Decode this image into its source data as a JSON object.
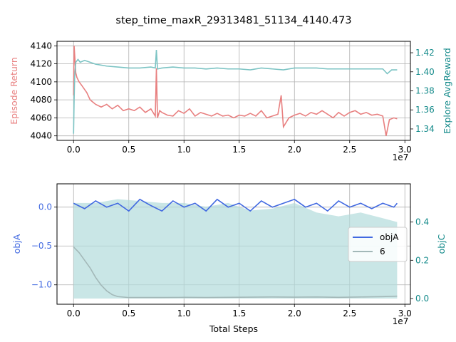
{
  "figure_title": "step_time_maxR_29313481_51134_4140.473",
  "colors": {
    "episode_return": "#e88080",
    "explore_reward": "#7cc4c4",
    "objA": "#4169e1",
    "objC_line": "#a3b8b8",
    "objC_fill": "#b2dcdc",
    "left_label_top": "#e88080",
    "right_label_top": "#138a8a",
    "left_label_bottom": "#4169e1",
    "right_label_bottom": "#138a8a"
  },
  "chart_data": [
    {
      "type": "line",
      "title": "",
      "xlabel": "",
      "x_offset_label": "1e7",
      "ylabel_left": "Episode Return",
      "ylabel_right": "Explore AvgReward",
      "xlim": [
        -0.15,
        3.05
      ],
      "ylim_left": [
        4035,
        4145
      ],
      "ylim_right": [
        1.328,
        1.432
      ],
      "x_ticks": [
        0.0,
        0.5,
        1.0,
        1.5,
        2.0,
        2.5,
        3.0
      ],
      "x_tick_labels": [
        "0.0",
        "0.5",
        "1.0",
        "1.5",
        "2.0",
        "2.5",
        "3.0"
      ],
      "y_ticks_left": [
        4040,
        4060,
        4080,
        4100,
        4120,
        4140
      ],
      "y_tick_labels_left": [
        "4040",
        "4060",
        "4080",
        "4100",
        "4120",
        "4140"
      ],
      "y_ticks_right": [
        1.34,
        1.36,
        1.38,
        1.4,
        1.42
      ],
      "y_tick_labels_right": [
        "1.34",
        "1.36",
        "1.38",
        "1.40",
        "1.42"
      ],
      "grid": true,
      "series": [
        {
          "name": "Episode Return",
          "axis": "left",
          "x": [
            0.0,
            0.005,
            0.01,
            0.02,
            0.03,
            0.05,
            0.08,
            0.12,
            0.15,
            0.2,
            0.25,
            0.3,
            0.35,
            0.4,
            0.45,
            0.5,
            0.55,
            0.6,
            0.65,
            0.7,
            0.74,
            0.75,
            0.76,
            0.78,
            0.8,
            0.85,
            0.9,
            0.95,
            1.0,
            1.05,
            1.1,
            1.15,
            1.2,
            1.25,
            1.3,
            1.35,
            1.4,
            1.45,
            1.5,
            1.55,
            1.6,
            1.65,
            1.7,
            1.75,
            1.8,
            1.85,
            1.88,
            1.9,
            1.95,
            2.0,
            2.05,
            2.1,
            2.15,
            2.2,
            2.25,
            2.3,
            2.35,
            2.4,
            2.45,
            2.5,
            2.55,
            2.6,
            2.65,
            2.7,
            2.75,
            2.8,
            2.83,
            2.86,
            2.9,
            2.93
          ],
          "y": [
            4085,
            4140,
            4130,
            4110,
            4105,
            4100,
            4095,
            4088,
            4080,
            4075,
            4072,
            4075,
            4070,
            4074,
            4068,
            4070,
            4068,
            4072,
            4066,
            4070,
            4062,
            4115,
            4060,
            4068,
            4066,
            4063,
            4062,
            4068,
            4065,
            4070,
            4062,
            4066,
            4064,
            4062,
            4065,
            4062,
            4063,
            4060,
            4063,
            4062,
            4065,
            4062,
            4068,
            4060,
            4062,
            4064,
            4085,
            4050,
            4060,
            4063,
            4065,
            4062,
            4066,
            4064,
            4068,
            4064,
            4060,
            4066,
            4062,
            4066,
            4068,
            4064,
            4066,
            4063,
            4064,
            4062,
            4040,
            4058,
            4060,
            4059
          ]
        },
        {
          "name": "Explore AvgReward",
          "axis": "right",
          "x": [
            0.0,
            0.005,
            0.01,
            0.02,
            0.04,
            0.06,
            0.1,
            0.15,
            0.2,
            0.3,
            0.4,
            0.5,
            0.6,
            0.7,
            0.74,
            0.75,
            0.76,
            0.8,
            0.9,
            1.0,
            1.1,
            1.2,
            1.3,
            1.4,
            1.5,
            1.6,
            1.7,
            1.8,
            1.9,
            2.0,
            2.1,
            2.2,
            2.3,
            2.4,
            2.5,
            2.6,
            2.7,
            2.8,
            2.84,
            2.88,
            2.93
          ],
          "y": [
            1.335,
            1.37,
            1.395,
            1.41,
            1.413,
            1.41,
            1.412,
            1.41,
            1.408,
            1.406,
            1.405,
            1.404,
            1.404,
            1.405,
            1.404,
            1.423,
            1.403,
            1.404,
            1.405,
            1.404,
            1.404,
            1.403,
            1.404,
            1.403,
            1.403,
            1.402,
            1.404,
            1.403,
            1.402,
            1.404,
            1.404,
            1.404,
            1.403,
            1.403,
            1.403,
            1.403,
            1.403,
            1.403,
            1.398,
            1.402,
            1.402
          ]
        }
      ]
    },
    {
      "type": "line",
      "title": "",
      "xlabel": "Total Steps",
      "x_offset_label": "1e7",
      "ylabel_left": "objA",
      "ylabel_right": "objC",
      "xlim": [
        -0.15,
        3.05
      ],
      "ylim_left": [
        -1.25,
        0.3
      ],
      "ylim_right": [
        -0.03,
        0.6
      ],
      "x_ticks": [
        0.0,
        0.5,
        1.0,
        1.5,
        2.0,
        2.5,
        3.0
      ],
      "x_tick_labels": [
        "0.0",
        "0.5",
        "1.0",
        "1.5",
        "2.0",
        "2.5",
        "3.0"
      ],
      "y_ticks_left": [
        -1.0,
        -0.5,
        0.0
      ],
      "y_tick_labels_left": [
        "−1.0",
        "−0.5",
        "0.0"
      ],
      "y_ticks_right": [
        0.0,
        0.2,
        0.4
      ],
      "y_tick_labels_right": [
        "0.0",
        "0.2",
        "0.4"
      ],
      "grid": true,
      "legend": {
        "placement": "center-right",
        "entries": [
          "objA",
          "6"
        ]
      },
      "series": [
        {
          "name": "objA",
          "axis": "left",
          "x": [
            0.0,
            0.1,
            0.2,
            0.3,
            0.4,
            0.5,
            0.6,
            0.7,
            0.8,
            0.9,
            1.0,
            1.1,
            1.2,
            1.3,
            1.4,
            1.5,
            1.6,
            1.7,
            1.8,
            1.9,
            2.0,
            2.1,
            2.2,
            2.3,
            2.4,
            2.5,
            2.6,
            2.7,
            2.8,
            2.9,
            2.93
          ],
          "y": [
            0.05,
            -0.02,
            0.08,
            0.0,
            0.05,
            -0.05,
            0.1,
            0.02,
            -0.05,
            0.08,
            0.0,
            0.05,
            -0.05,
            0.1,
            0.0,
            0.05,
            -0.05,
            0.08,
            0.0,
            0.05,
            0.1,
            0.0,
            0.05,
            -0.05,
            0.08,
            0.0,
            0.05,
            -0.02,
            0.05,
            0.0,
            0.05
          ]
        },
        {
          "name": "6",
          "axis": "right",
          "x": [
            0.0,
            0.05,
            0.1,
            0.15,
            0.2,
            0.25,
            0.3,
            0.35,
            0.4,
            0.5,
            0.6,
            0.8,
            1.0,
            1.2,
            1.4,
            1.6,
            1.8,
            2.0,
            2.2,
            2.4,
            2.6,
            2.8,
            2.93
          ],
          "y": [
            0.27,
            0.24,
            0.2,
            0.16,
            0.11,
            0.07,
            0.04,
            0.02,
            0.01,
            0.005,
            0.005,
            0.005,
            0.006,
            0.005,
            0.006,
            0.007,
            0.008,
            0.007,
            0.008,
            0.006,
            0.008,
            0.01,
            0.012
          ]
        },
        {
          "name": "objC",
          "axis": "right",
          "style": "area",
          "x": [
            0.0,
            0.2,
            0.4,
            0.6,
            0.8,
            1.0,
            1.2,
            1.4,
            1.6,
            1.8,
            2.0,
            2.2,
            2.4,
            2.6,
            2.8,
            2.93
          ],
          "y": [
            0.5,
            0.5,
            0.52,
            0.51,
            0.5,
            0.5,
            0.48,
            0.5,
            0.46,
            0.47,
            0.5,
            0.45,
            0.43,
            0.45,
            0.42,
            0.4
          ]
        }
      ]
    }
  ]
}
